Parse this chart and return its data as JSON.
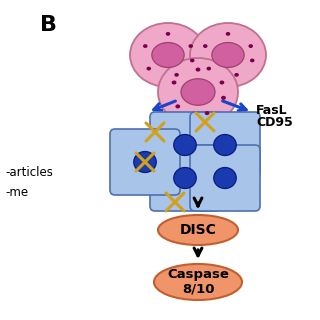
{
  "background_color": "#ffffff",
  "pink_cell_color": "#f0a8c8",
  "pink_cell_edge": "#c07090",
  "pink_nucleus_color": "#d060a0",
  "pink_nucleus_edge": "#a04070",
  "pink_dot_color": "#7b0050",
  "blue_cell_color": "#a8c4e8",
  "blue_cell_edge": "#5070b0",
  "blue_nucleus_color": "#1a3ab0",
  "blue_nucleus_edge": "#0a1a80",
  "orange_color": "#f0956a",
  "orange_edge": "#c06030",
  "black": "#000000",
  "blue_arrow_color": "#1a44cc",
  "gold_color": "#d4a017",
  "title_label": "B",
  "left_text_1": "-articles",
  "left_text_2": "-me",
  "fasl_label": "FasL",
  "cd95_label": "CD95",
  "disc_label": "DISC",
  "caspase_label": "Caspase\n8/10"
}
